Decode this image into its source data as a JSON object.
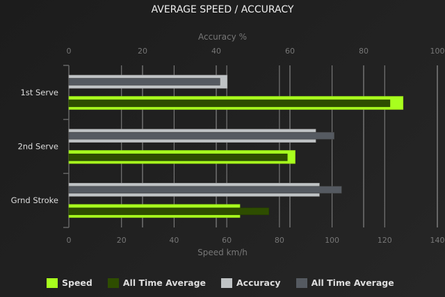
{
  "chart_data": {
    "type": "bar",
    "orientation": "horizontal",
    "title": "AVERAGE SPEED / ACCURACY",
    "categories": [
      "1st Serve",
      "2nd Serve",
      "Grnd Stroke"
    ],
    "x_bottom": {
      "label": "Speed km/h",
      "range": [
        0,
        140
      ],
      "ticks": [
        0,
        20,
        40,
        60,
        80,
        100,
        120,
        140
      ]
    },
    "x_top": {
      "label": "Accuracy %",
      "range": [
        0,
        100
      ],
      "ticks": [
        0,
        20,
        40,
        60,
        80,
        100
      ]
    },
    "grid": true,
    "legend_position": "bottom",
    "series": [
      {
        "name": "Speed",
        "axis": "bottom",
        "color": "#a8ff1e",
        "values": [
          127,
          86,
          65
        ]
      },
      {
        "name": "All Time Average",
        "axis": "bottom",
        "color": "#2e4d00",
        "values": [
          122,
          83,
          76
        ]
      },
      {
        "name": "Accuracy",
        "axis": "top",
        "color": "#bfc3c5",
        "values": [
          43,
          67,
          68
        ]
      },
      {
        "name": "All Time Average",
        "axis": "top",
        "color": "#555a61",
        "values": [
          41,
          72,
          74
        ]
      }
    ]
  }
}
